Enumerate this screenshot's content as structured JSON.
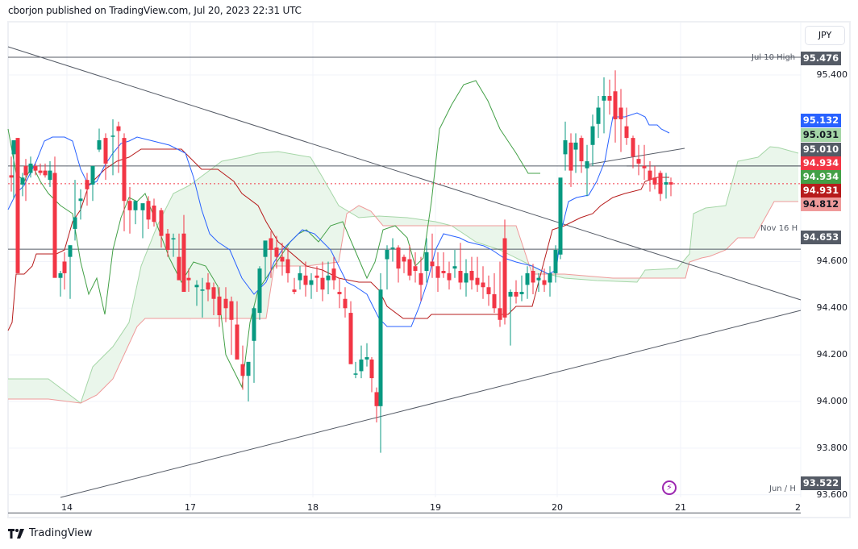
{
  "header": {
    "text": "cborjon published on TradingView.com, Jul 20, 2023 22:31 UTC"
  },
  "currency_button": {
    "label": "JPY"
  },
  "footer": {
    "brand": "TradingView"
  },
  "colors": {
    "up": "#089981",
    "down": "#f23645",
    "tenkan": "#2962ff",
    "kijun": "#b71c1c",
    "chikou": "#43a047",
    "span_a": "#a5d6a7",
    "span_b": "#ef9a9a",
    "hline": "#555b66"
  },
  "price_axis": {
    "labels": [
      "95.400",
      "94.600",
      "94.400",
      "94.200",
      "94.000",
      "93.800",
      "93.600"
    ]
  },
  "price_tags": [
    {
      "value": "95.476",
      "bg": "#555b66",
      "fg": "#ffffff"
    },
    {
      "value": "95.132",
      "bg": "#2962ff",
      "fg": "#ffffff"
    },
    {
      "value": "95.031",
      "bg": "#a5d6a7",
      "fg": "#131722"
    },
    {
      "value": "95.010",
      "bg": "#555b66",
      "fg": "#ffffff"
    },
    {
      "value": "94.934",
      "bg": "#f23645",
      "fg": "#ffffff"
    },
    {
      "value": "94.934",
      "bg": "#43a047",
      "fg": "#ffffff"
    },
    {
      "value": "94.931",
      "bg": "#b71c1c",
      "fg": "#ffffff"
    },
    {
      "value": "94.812",
      "bg": "#ef9a9a",
      "fg": "#131722"
    },
    {
      "value": "94.653",
      "bg": "#555b66",
      "fg": "#ffffff"
    },
    {
      "value": "93.522",
      "bg": "#555b66",
      "fg": "#ffffff"
    }
  ],
  "line_labels": {
    "jul10": "Jul 10 High",
    "nov16": "Nov 16 H",
    "jun": "Jun / H"
  },
  "time_axis": {
    "labels": [
      "14",
      "17",
      "18",
      "19",
      "20",
      "21",
      "2"
    ]
  },
  "event_icon": {
    "glyph": "⚡"
  },
  "chart_data": {
    "type": "candlestick",
    "title": "",
    "symbol_currency": "JPY",
    "xlabel": "",
    "ylabel": "",
    "x_ticks": [
      "14",
      "17",
      "18",
      "19",
      "20",
      "21",
      "2"
    ],
    "y_ticks": [
      95.4,
      94.6,
      94.4,
      94.2,
      94.0,
      93.8,
      93.6
    ],
    "ylim": [
      93.44,
      95.61
    ],
    "grid": true,
    "horizontal_levels": [
      {
        "label": "Jul 10 High",
        "value": 95.476
      },
      {
        "label": "",
        "value": 95.01
      },
      {
        "label": "Nov 16 H",
        "value": 94.653
      },
      {
        "label": "Jun / H",
        "value": 93.522
      }
    ],
    "last_price": 94.934,
    "indicator": "Ichimoku Cloud",
    "indicator_values": {
      "tenkan": 95.132,
      "kijun": 94.931,
      "span_a": 95.031,
      "span_b": 94.812,
      "chikou": 94.934
    },
    "trendlines": [
      {
        "name": "descending",
        "from": [
          10,
          58
        ],
        "to": [
          993,
          372
        ]
      },
      {
        "name": "ascending",
        "from": [
          75,
          617
        ],
        "to": [
          993,
          385
        ]
      },
      {
        "name": "small-ascending",
        "from": [
          729,
          204
        ],
        "to": [
          849,
          184
        ]
      }
    ],
    "candles": [
      [
        14,
        94.97,
        95.05,
        94.9,
        94.96
      ],
      [
        17,
        95.06,
        95.11,
        94.87,
        95.12
      ],
      [
        22,
        95.13,
        95.13,
        94.55,
        94.55
      ],
      [
        28,
        94.93,
        94.98,
        94.88,
        94.96
      ],
      [
        32,
        95.01,
        95.04,
        94.86,
        94.97
      ],
      [
        38,
        94.98,
        95.05,
        94.96,
        95.02
      ],
      [
        44,
        95.01,
        95.02,
        94.97,
        94.99
      ],
      [
        50,
        94.99,
        95.02,
        94.97,
        94.98
      ],
      [
        56,
        94.99,
        95.02,
        94.96,
        94.97
      ],
      [
        62,
        94.95,
        95.03,
        94.92,
        94.99
      ],
      [
        68,
        94.98,
        95.05,
        94.9,
        94.53
      ],
      [
        75,
        94.53,
        94.56,
        94.45,
        94.55
      ],
      [
        80,
        94.6,
        94.64,
        94.48,
        94.55
      ],
      [
        87,
        94.62,
        94.67,
        94.44,
        94.67
      ],
      [
        93,
        94.74,
        94.95,
        94.69,
        94.79
      ],
      [
        100,
        94.86,
        94.91,
        94.78,
        94.87
      ],
      [
        108,
        94.95,
        94.98,
        94.84,
        94.91
      ],
      [
        115,
        94.93,
        95.0,
        94.86,
        95.01
      ],
      [
        123,
        95.08,
        95.17,
        95.07,
        95.12
      ],
      [
        131,
        95.13,
        95.15,
        94.95,
        95.02
      ],
      [
        140,
        95.14,
        95.21,
        94.97,
        95.14
      ],
      [
        147,
        95.18,
        95.2,
        94.98,
        95.16
      ],
      [
        154,
        95.13,
        95.15,
        94.73,
        94.86
      ],
      [
        161,
        94.86,
        94.92,
        94.72,
        94.82
      ],
      [
        168,
        94.82,
        94.86,
        94.76,
        94.86
      ],
      [
        177,
        94.82,
        94.84,
        94.7,
        94.85
      ],
      [
        184,
        94.86,
        94.88,
        94.74,
        94.78
      ],
      [
        191,
        94.84,
        94.87,
        94.75,
        94.77
      ],
      [
        200,
        94.82,
        94.83,
        94.66,
        94.71
      ],
      [
        208,
        94.72,
        94.74,
        94.62,
        94.65
      ],
      [
        215,
        94.7,
        94.72,
        94.62,
        94.7
      ],
      [
        222,
        94.62,
        94.72,
        94.54,
        94.52
      ],
      [
        228,
        94.72,
        94.8,
        94.48,
        94.47
      ],
      [
        234,
        94.53,
        94.57,
        94.47,
        94.52
      ],
      [
        244,
        94.49,
        94.52,
        94.41,
        94.5
      ],
      [
        251,
        94.48,
        94.53,
        94.36,
        94.48
      ],
      [
        258,
        94.51,
        94.55,
        94.43,
        94.48
      ],
      [
        265,
        94.49,
        94.51,
        94.37,
        94.44
      ],
      [
        272,
        94.45,
        94.49,
        94.32,
        94.37
      ],
      [
        280,
        94.44,
        94.49,
        94.34,
        94.4
      ],
      [
        287,
        94.43,
        94.45,
        94.2,
        94.35
      ],
      [
        294,
        94.33,
        94.43,
        94.26,
        94.18
      ],
      [
        301,
        94.16,
        94.24,
        94.05,
        94.11
      ],
      [
        308,
        94.11,
        94.13,
        94.0,
        94.17
      ],
      [
        315,
        94.26,
        94.41,
        94.08,
        94.4
      ],
      [
        322,
        94.38,
        94.58,
        94.35,
        94.57
      ],
      [
        329,
        94.62,
        94.66,
        94.52,
        94.69
      ],
      [
        336,
        94.7,
        94.73,
        94.53,
        94.65
      ],
      [
        343,
        94.66,
        94.71,
        94.57,
        94.62
      ],
      [
        350,
        94.62,
        94.68,
        94.54,
        94.6
      ],
      [
        357,
        94.61,
        94.66,
        94.51,
        94.55
      ],
      [
        365,
        94.48,
        94.53,
        94.46,
        94.47
      ],
      [
        372,
        94.52,
        94.58,
        94.48,
        94.55
      ],
      [
        379,
        94.54,
        94.6,
        94.45,
        94.5
      ],
      [
        386,
        94.5,
        94.55,
        94.44,
        94.52
      ],
      [
        393,
        94.54,
        94.58,
        94.47,
        94.53
      ],
      [
        400,
        94.53,
        94.6,
        94.43,
        94.48
      ],
      [
        407,
        94.52,
        94.6,
        94.46,
        94.54
      ],
      [
        414,
        94.57,
        94.62,
        94.48,
        94.52
      ],
      [
        421,
        94.47,
        94.53,
        94.4,
        94.46
      ],
      [
        428,
        94.44,
        94.49,
        94.36,
        94.4
      ],
      [
        435,
        94.38,
        94.43,
        94.2,
        94.16
      ],
      [
        441,
        94.12,
        94.17,
        94.1,
        94.12
      ],
      [
        448,
        94.13,
        94.24,
        94.1,
        94.18
      ],
      [
        455,
        94.18,
        94.25,
        94.15,
        94.19
      ],
      [
        461,
        94.18,
        94.19,
        94.04,
        94.1
      ],
      [
        467,
        94.04,
        94.06,
        93.91,
        93.98
      ],
      [
        472,
        93.98,
        94.55,
        93.78,
        94.48
      ],
      [
        480,
        94.61,
        94.67,
        94.48,
        94.65
      ],
      [
        487,
        94.66,
        94.7,
        94.6,
        94.66
      ],
      [
        494,
        94.66,
        94.67,
        94.51,
        94.57
      ],
      [
        501,
        94.62,
        94.63,
        94.55,
        94.6
      ],
      [
        508,
        94.61,
        94.67,
        94.52,
        94.54
      ],
      [
        515,
        94.58,
        94.64,
        94.51,
        94.56
      ],
      [
        522,
        94.55,
        94.62,
        94.43,
        94.5
      ],
      [
        529,
        94.56,
        94.7,
        94.51,
        94.64
      ],
      [
        536,
        94.6,
        94.72,
        94.53,
        94.58
      ],
      [
        543,
        94.58,
        94.64,
        94.47,
        94.53
      ],
      [
        550,
        94.56,
        94.64,
        94.53,
        94.55
      ],
      [
        557,
        94.55,
        94.6,
        94.48,
        94.52
      ],
      [
        564,
        94.57,
        94.65,
        94.53,
        94.58
      ],
      [
        571,
        94.56,
        94.68,
        94.48,
        94.51
      ],
      [
        578,
        94.51,
        94.61,
        94.45,
        94.55
      ],
      [
        585,
        94.56,
        94.62,
        94.48,
        94.52
      ],
      [
        592,
        94.53,
        94.62,
        94.47,
        94.5
      ],
      [
        599,
        94.51,
        94.58,
        94.44,
        94.49
      ],
      [
        606,
        94.49,
        94.54,
        94.41,
        94.46
      ],
      [
        613,
        94.46,
        94.55,
        94.38,
        94.4
      ],
      [
        620,
        94.4,
        94.6,
        94.32,
        94.35
      ],
      [
        626,
        94.7,
        94.78,
        94.33,
        94.36
      ],
      [
        633,
        94.45,
        94.48,
        94.24,
        94.47
      ],
      [
        640,
        94.47,
        94.52,
        94.42,
        94.45
      ],
      [
        647,
        94.46,
        94.54,
        94.43,
        94.47
      ],
      [
        654,
        94.5,
        94.58,
        94.44,
        94.55
      ],
      [
        661,
        94.56,
        94.59,
        94.46,
        94.51
      ],
      [
        668,
        94.52,
        94.55,
        94.47,
        94.53
      ],
      [
        675,
        94.52,
        94.57,
        94.47,
        94.5
      ],
      [
        682,
        94.51,
        94.58,
        94.45,
        94.55
      ],
      [
        689,
        94.55,
        94.67,
        94.51,
        94.65
      ],
      [
        695,
        94.63,
        94.9,
        94.61,
        94.96
      ],
      [
        701,
        95.06,
        95.2,
        94.99,
        95.12
      ],
      [
        708,
        95.11,
        95.15,
        94.92,
        94.99
      ],
      [
        714,
        95.08,
        95.15,
        94.98,
        95.11
      ],
      [
        721,
        95.13,
        95.14,
        94.98,
        95.03
      ],
      [
        728,
        95.0,
        95.1,
        94.88,
        95.03
      ],
      [
        735,
        95.1,
        95.23,
        95.01,
        95.18
      ],
      [
        742,
        95.19,
        95.31,
        95.13,
        95.26
      ],
      [
        749,
        95.29,
        95.39,
        95.15,
        95.31
      ],
      [
        756,
        95.31,
        95.38,
        95.23,
        95.29
      ],
      [
        763,
        95.33,
        95.42,
        95.11,
        95.21
      ],
      [
        770,
        95.26,
        95.34,
        95.07,
        95.21
      ],
      [
        777,
        95.18,
        95.26,
        95.1,
        95.13
      ],
      [
        785,
        95.13,
        95.14,
        95.0,
        95.05
      ],
      [
        792,
        95.04,
        95.1,
        94.97,
        95.02
      ],
      [
        799,
        95.01,
        95.1,
        94.95,
        95.0
      ],
      [
        806,
        94.99,
        95.03,
        94.9,
        94.95
      ],
      [
        812,
        94.96,
        95.01,
        94.91,
        94.93
      ],
      [
        819,
        94.98,
        94.99,
        94.86,
        94.89
      ],
      [
        826,
        94.93,
        94.98,
        94.87,
        94.94
      ],
      [
        832,
        94.94,
        94.96,
        94.88,
        94.93
      ]
    ]
  }
}
